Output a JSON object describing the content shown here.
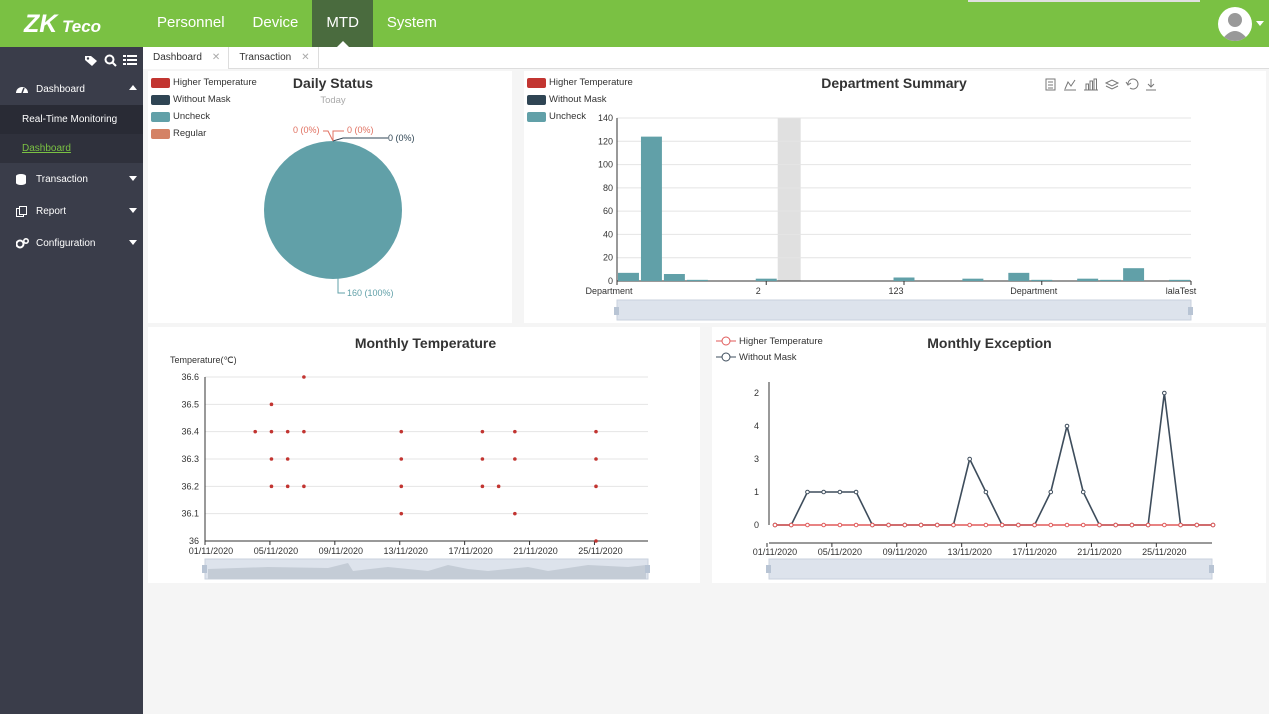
{
  "brand": {
    "logo_text": "ZKTeco",
    "accent": "#7ac143",
    "active_nav": "#4a6b3e",
    "sidebar_bg": "#3a3d4a"
  },
  "nav": {
    "items": [
      "Personnel",
      "Device",
      "MTD",
      "System"
    ],
    "active": "MTD"
  },
  "sidebar": {
    "tools": [
      "tag-icon",
      "search-icon",
      "list-icon"
    ],
    "dashboard": "Dashboard",
    "sub_items": [
      "Real-Time Monitoring",
      "Dashboard"
    ],
    "items": [
      "Transaction",
      "Report",
      "Configuration"
    ]
  },
  "tabs": [
    "Dashboard",
    "Transaction"
  ],
  "daily_status": {
    "title": "Daily Status",
    "subtitle": "Today",
    "legend": [
      {
        "label": "Higher Temperature",
        "color": "#c23531"
      },
      {
        "label": "Without Mask",
        "color": "#2f4554"
      },
      {
        "label": "Uncheck",
        "color": "#61a0a8"
      },
      {
        "label": "Regular",
        "color": "#d48265"
      }
    ],
    "labels": [
      "0 (0%)",
      "0 (0%)",
      "0 (0%)",
      "160 (100%)"
    ],
    "chart_data": {
      "type": "pie",
      "categories": [
        "Higher Temperature",
        "Without Mask",
        "Uncheck",
        "Regular"
      ],
      "values": [
        0,
        0,
        160,
        0
      ]
    }
  },
  "dept_summary": {
    "title": "Department Summary",
    "legend": [
      {
        "label": "Higher Temperature",
        "color": "#c23531"
      },
      {
        "label": "Without Mask",
        "color": "#2f4554"
      },
      {
        "label": "Uncheck",
        "color": "#61a0a8"
      }
    ],
    "toolbox": [
      "data-view-icon",
      "line-icon",
      "bar-icon",
      "stack-icon",
      "restore-icon",
      "download-icon"
    ],
    "chart_data": {
      "type": "bar",
      "xticks": [
        "Department",
        "2",
        "123",
        "Department",
        "lalaTest"
      ],
      "ylim": [
        0,
        140
      ],
      "yticks": [
        0,
        20,
        40,
        60,
        80,
        100,
        120,
        140
      ],
      "series": [
        {
          "name": "Uncheck",
          "values": [
            7,
            124,
            6,
            1,
            0,
            0,
            2,
            0,
            0,
            0,
            0,
            0,
            3,
            0,
            0,
            2,
            0,
            7,
            1,
            0,
            2,
            1,
            11,
            0,
            1
          ]
        }
      ]
    }
  },
  "monthly_temp": {
    "title": "Monthly Temperature",
    "ylabel": "Temperature(℃)",
    "chart_data": {
      "type": "scatter",
      "ylim": [
        36,
        36.6
      ],
      "yticks": [
        "36",
        "36.1",
        "36.2",
        "36.3",
        "36.4",
        "36.5",
        "36.6"
      ],
      "xticks": [
        "01/11/2020",
        "05/11/2020",
        "09/11/2020",
        "13/11/2020",
        "17/11/2020",
        "21/11/2020",
        "25/11/2020"
      ],
      "points": [
        [
          4,
          36.4
        ],
        [
          5,
          36.4
        ],
        [
          5,
          36.5
        ],
        [
          5,
          36.3
        ],
        [
          5,
          36.2
        ],
        [
          6,
          36.4
        ],
        [
          6,
          36.3
        ],
        [
          6,
          36.2
        ],
        [
          7,
          36.6
        ],
        [
          7,
          36.4
        ],
        [
          7,
          36.2
        ],
        [
          13,
          36.4
        ],
        [
          13,
          36.3
        ],
        [
          13,
          36.2
        ],
        [
          13,
          36.1
        ],
        [
          18,
          36.4
        ],
        [
          18,
          36.3
        ],
        [
          18,
          36.2
        ],
        [
          19,
          36.2
        ],
        [
          20,
          36.4
        ],
        [
          20,
          36.3
        ],
        [
          20,
          36.1
        ],
        [
          25,
          36.4
        ],
        [
          25,
          36.3
        ],
        [
          25,
          36.2
        ],
        [
          25,
          36
        ]
      ]
    }
  },
  "monthly_exc": {
    "title": "Monthly Exception",
    "legend": [
      {
        "label": "Higher Temperature",
        "color": "#e05a5a"
      },
      {
        "label": "Without Mask",
        "color": "#3e4d5c"
      }
    ],
    "chart_data": {
      "type": "line",
      "yticks": [
        "0",
        "1",
        "2",
        "3",
        "4",
        "5"
      ],
      "ytick_labels": [
        "0",
        "1",
        "3",
        "4",
        "2"
      ],
      "xticks": [
        "01/11/2020",
        "05/11/2020",
        "09/11/2020",
        "13/11/2020",
        "17/11/2020",
        "21/11/2020",
        "25/11/2020"
      ],
      "series": [
        {
          "name": "Higher Temperature",
          "values": [
            0,
            0,
            0,
            0,
            0,
            0,
            0,
            0,
            0,
            0,
            0,
            0,
            0,
            0,
            0,
            0,
            0,
            0,
            0,
            0,
            0,
            0,
            0,
            0,
            0,
            0,
            0,
            0
          ]
        },
        {
          "name": "Without Mask",
          "values": [
            0,
            0,
            1,
            1,
            1,
            1,
            0,
            0,
            0,
            0,
            0,
            0,
            3,
            1,
            0,
            0,
            0,
            1,
            4,
            1,
            0,
            0,
            0,
            0,
            5,
            0,
            0,
            0
          ]
        }
      ]
    }
  }
}
